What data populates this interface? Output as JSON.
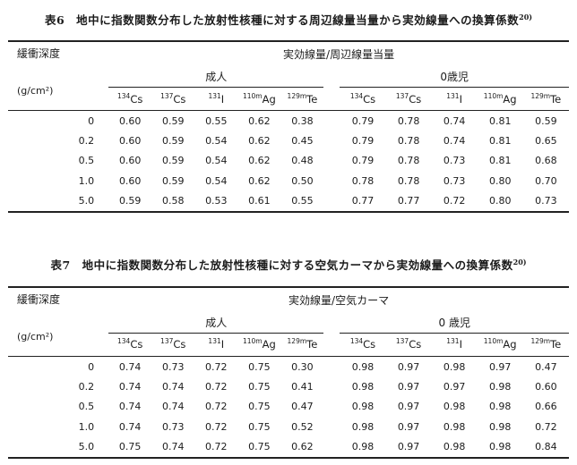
{
  "page": {
    "background_color": "#ffffff",
    "text_color": "#1c1c1c"
  },
  "tables": [
    {
      "title": "表6　地中に指数関数分布した放射性核種に対する周辺線量当量から実効線量への換算係数",
      "title_sup": "20)",
      "depth_header": "緩衝深度",
      "depth_unit": "(g/cm²)",
      "quantity_header": "実効線量/周辺線量当量",
      "group_adult": "成人",
      "group_infant": "0歳児",
      "nuclides": [
        {
          "mass": "134",
          "symbol": "Cs"
        },
        {
          "mass": "137",
          "symbol": "Cs"
        },
        {
          "mass": "131",
          "symbol": "I"
        },
        {
          "mass": "110m",
          "symbol": "Ag"
        },
        {
          "mass": "129m",
          "symbol": "Te"
        }
      ],
      "rows": [
        {
          "depth": "0",
          "adult": [
            "0.60",
            "0.59",
            "0.55",
            "0.62",
            "0.38"
          ],
          "infant": [
            "0.79",
            "0.78",
            "0.74",
            "0.81",
            "0.59"
          ]
        },
        {
          "depth": "0.2",
          "adult": [
            "0.60",
            "0.59",
            "0.54",
            "0.62",
            "0.45"
          ],
          "infant": [
            "0.79",
            "0.78",
            "0.74",
            "0.81",
            "0.65"
          ]
        },
        {
          "depth": "0.5",
          "adult": [
            "0.60",
            "0.59",
            "0.54",
            "0.62",
            "0.48"
          ],
          "infant": [
            "0.79",
            "0.78",
            "0.73",
            "0.81",
            "0.68"
          ]
        },
        {
          "depth": "1.0",
          "adult": [
            "0.60",
            "0.59",
            "0.54",
            "0.62",
            "0.50"
          ],
          "infant": [
            "0.78",
            "0.78",
            "0.73",
            "0.80",
            "0.70"
          ]
        },
        {
          "depth": "5.0",
          "adult": [
            "0.59",
            "0.58",
            "0.53",
            "0.61",
            "0.55"
          ],
          "infant": [
            "0.77",
            "0.77",
            "0.72",
            "0.80",
            "0.73"
          ]
        }
      ]
    },
    {
      "title": "表7　地中に指数関数分布した放射性核種に対する空気カーマから実効線量への換算係数",
      "title_sup": "20)",
      "depth_header": "緩衝深度",
      "depth_unit": "(g/cm²)",
      "quantity_header": "実効線量/空気カーマ",
      "group_adult": "成人",
      "group_infant": "0 歳児",
      "nuclides": [
        {
          "mass": "134",
          "symbol": "Cs"
        },
        {
          "mass": "137",
          "symbol": "Cs"
        },
        {
          "mass": "131",
          "symbol": "I"
        },
        {
          "mass": "110m",
          "symbol": "Ag"
        },
        {
          "mass": "129m",
          "symbol": "Te"
        }
      ],
      "rows": [
        {
          "depth": "0",
          "adult": [
            "0.74",
            "0.73",
            "0.72",
            "0.75",
            "0.30"
          ],
          "infant": [
            "0.98",
            "0.97",
            "0.98",
            "0.97",
            "0.47"
          ]
        },
        {
          "depth": "0.2",
          "adult": [
            "0.74",
            "0.74",
            "0.72",
            "0.75",
            "0.41"
          ],
          "infant": [
            "0.98",
            "0.97",
            "0.97",
            "0.98",
            "0.60"
          ]
        },
        {
          "depth": "0.5",
          "adult": [
            "0.74",
            "0.74",
            "0.72",
            "0.75",
            "0.47"
          ],
          "infant": [
            "0.98",
            "0.97",
            "0.98",
            "0.98",
            "0.66"
          ]
        },
        {
          "depth": "1.0",
          "adult": [
            "0.74",
            "0.73",
            "0.72",
            "0.75",
            "0.52"
          ],
          "infant": [
            "0.98",
            "0.97",
            "0.98",
            "0.98",
            "0.72"
          ]
        },
        {
          "depth": "5.0",
          "adult": [
            "0.75",
            "0.74",
            "0.72",
            "0.75",
            "0.62"
          ],
          "infant": [
            "0.98",
            "0.97",
            "0.98",
            "0.98",
            "0.84"
          ]
        }
      ]
    }
  ]
}
